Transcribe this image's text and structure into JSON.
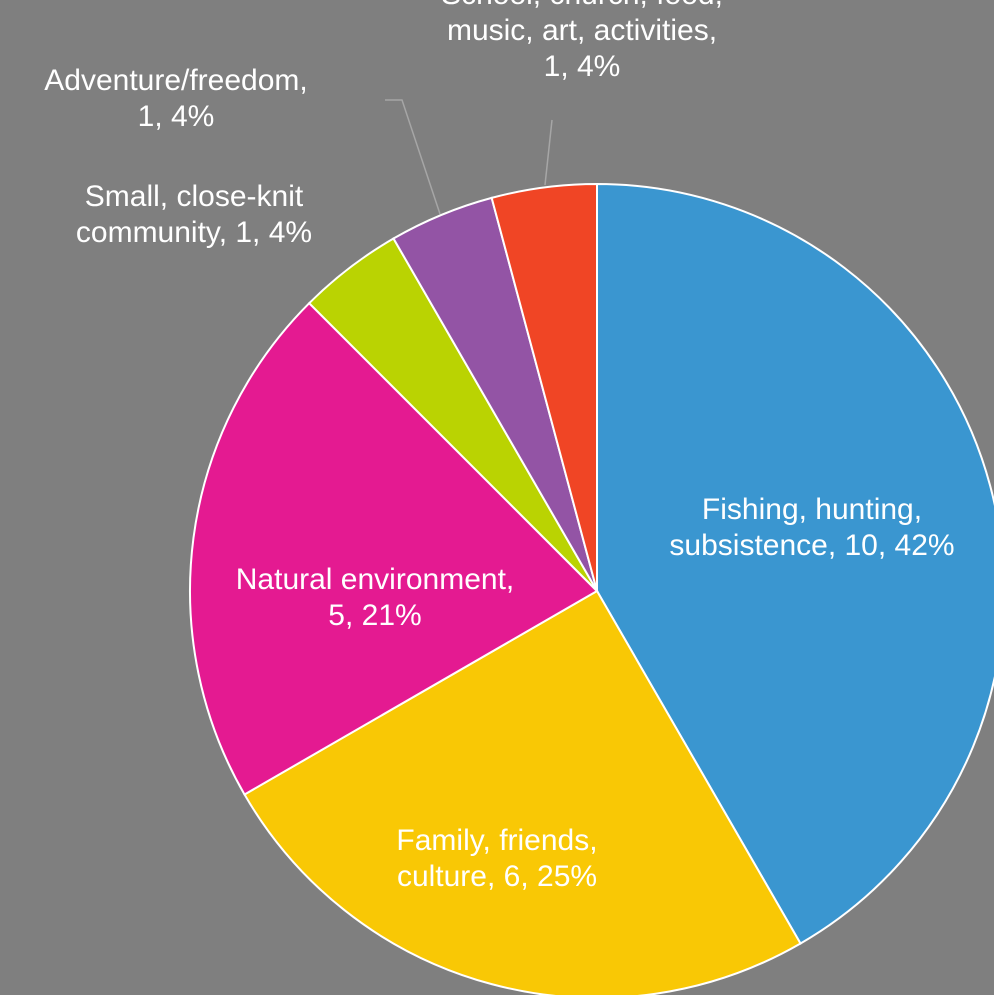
{
  "chart_data": {
    "type": "pie",
    "background_color": "#7f7f7f",
    "slices": [
      {
        "label": "Fishing, hunting, subsistence",
        "value": 10,
        "percent": "42%",
        "color": "#3a96d0",
        "label_lines": [
          "Fishing, hunting,",
          "subsistence, 10, 42%"
        ]
      },
      {
        "label": "Family, friends, culture",
        "value": 6,
        "percent": "25%",
        "color": "#f9c805",
        "label_lines": [
          "Family, friends,",
          "culture, 6, 25%"
        ]
      },
      {
        "label": "Natural environment",
        "value": 5,
        "percent": "21%",
        "color": "#e41a91",
        "label_lines": [
          "Natural environment,",
          "5, 21%"
        ]
      },
      {
        "label": "Small, close-knit community",
        "value": 1,
        "percent": "4%",
        "color": "#bad302",
        "label_lines": [
          "Small, close-knit",
          "community, 1, 4%"
        ]
      },
      {
        "label": "Adventure/freedom",
        "value": 1,
        "percent": "4%",
        "color": "#9354a5",
        "label_lines": [
          "Adventure/freedom,",
          "1, 4%"
        ]
      },
      {
        "label": "School, church, food, music, art, activities",
        "value": 1,
        "percent": "4%",
        "color": "#f04525",
        "label_lines": [
          "School, church, food,",
          "music, art, activities,",
          "1, 4%"
        ]
      }
    ]
  }
}
